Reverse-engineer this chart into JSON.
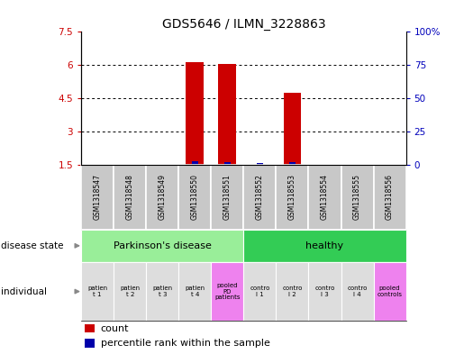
{
  "title": "GDS5646 / ILMN_3228863",
  "samples": [
    "GSM1318547",
    "GSM1318548",
    "GSM1318549",
    "GSM1318550",
    "GSM1318551",
    "GSM1318552",
    "GSM1318553",
    "GSM1318554",
    "GSM1318555",
    "GSM1318556"
  ],
  "red_bars": [
    0,
    0,
    0,
    6.15,
    6.05,
    0,
    4.75,
    0,
    0,
    0
  ],
  "blue_bars_val": [
    0,
    0,
    0,
    1.65,
    1.62,
    1.56,
    1.63,
    0,
    0,
    0
  ],
  "bar_bottom": 1.5,
  "ylim_left": [
    1.5,
    7.5
  ],
  "ylim_right": [
    0,
    100
  ],
  "yticks_left": [
    1.5,
    3.0,
    4.5,
    6.0,
    7.5
  ],
  "ytick_labels_left": [
    "1.5",
    "3",
    "4.5",
    "6",
    "7.5"
  ],
  "yticks_right": [
    0,
    25,
    50,
    75,
    100
  ],
  "ytick_labels_right": [
    "0",
    "25",
    "50",
    "75",
    "100%"
  ],
  "disease_state_groups": [
    {
      "label": "Parkinson's disease",
      "start": 0,
      "end": 5,
      "color": "#99EE99"
    },
    {
      "label": "healthy",
      "start": 5,
      "end": 10,
      "color": "#33CC55"
    }
  ],
  "individual_labels": [
    "patien\nt 1",
    "patien\nt 2",
    "patien\nt 3",
    "patien\nt 4",
    "pooled\nPD\npatients",
    "contro\nl 1",
    "contro\nl 2",
    "contro\nl 3",
    "contro\nl 4",
    "pooled\ncontrols"
  ],
  "individual_is_pooled": [
    false,
    false,
    false,
    false,
    true,
    false,
    false,
    false,
    false,
    true
  ],
  "legend_items": [
    {
      "color": "#CC0000",
      "label": "count"
    },
    {
      "color": "#0000AA",
      "label": "percentile rank within the sample"
    }
  ],
  "red_color": "#CC0000",
  "blue_color": "#0000AA",
  "left_axis_color": "#CC0000",
  "right_axis_color": "#0000BB",
  "bar_width": 0.55,
  "blue_bar_width": 0.18,
  "gsm_row_color": "#C8C8C8",
  "individual_normal_color": "#DDDDDD",
  "individual_pooled_color": "#EE82EE",
  "left_label_ds": "disease state",
  "left_label_ind": "individual",
  "arrow_color": "#888888"
}
